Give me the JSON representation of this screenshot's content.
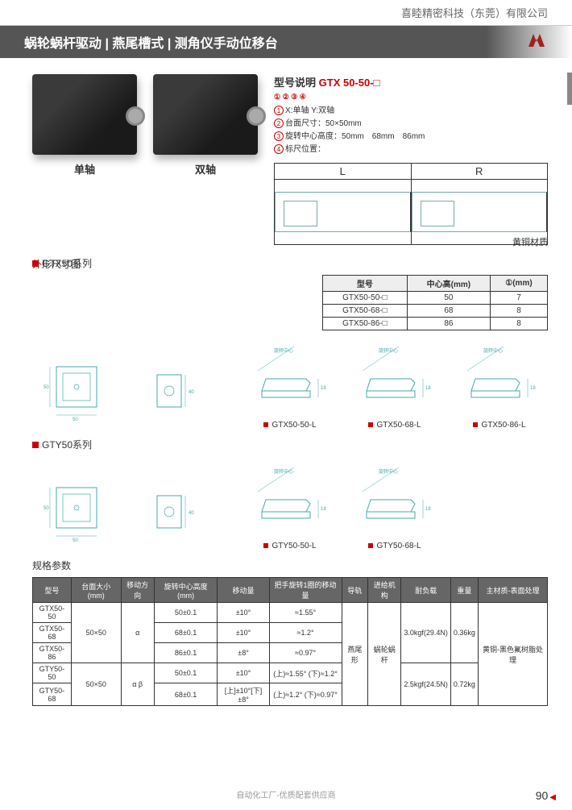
{
  "company": "喜睦精密科技（东莞）有限公司",
  "title": "蜗轮蜗杆驱动 | 燕尾槽式 | 测角仪手动位移台",
  "product_labels": {
    "single": "单轴",
    "dual": "双轴"
  },
  "model_section": {
    "label": "型号说明",
    "code": "GTX 50-50-□",
    "sub_nums": "① ② ③ ④",
    "lines": [
      {
        "n": "1",
        "t": "X:单轴 Y:双轴"
      },
      {
        "n": "2",
        "t": "台面尺寸：50×50mm"
      },
      {
        "n": "3",
        "t": "旋转中心高度：50mm　68mm　86mm"
      },
      {
        "n": "4",
        "t": "标尺位置："
      }
    ],
    "lr": {
      "L": "L",
      "R": "R"
    }
  },
  "outline_label": "外形尺寸图",
  "material": "黄铜材质",
  "series": {
    "gtx": "GTX50系列",
    "gty": "GTY50系列"
  },
  "mini_table": {
    "headers": [
      "型号",
      "中心高(mm)",
      "①(mm)"
    ],
    "rows": [
      [
        "GTX50-50-□",
        "50",
        "7"
      ],
      [
        "GTX50-68-□",
        "68",
        "8"
      ],
      [
        "GTX50-86-□",
        "86",
        "8"
      ]
    ]
  },
  "gtx_drawings": [
    "GTX50-50-L",
    "GTX50-68-L",
    "GTX50-86-L"
  ],
  "gty_drawings": [
    "GTY50-50-L",
    "GTY50-68-L"
  ],
  "spec_label": "规格参数",
  "spec_table": {
    "headers": [
      "型号",
      "台面大小(mm)",
      "移动方向",
      "旋转中心高度(mm)",
      "移动量",
      "把手旋转1圈的移动量",
      "导轨",
      "进给机构",
      "耐负载",
      "重量",
      "主材质-表面处理"
    ],
    "rows": [
      [
        "GTX50-50",
        "50×50",
        "α",
        "50±0.1",
        "±10°",
        "≈1.55°",
        "燕尾形",
        "蜗轮蜗杆",
        "3.0kgf(29.4N)",
        "0.36kg",
        "黄铜-黑色氟树脂处理"
      ],
      [
        "GTX50-68",
        "",
        "",
        "68±0.1",
        "±10°",
        "≈1.2°",
        "",
        "",
        "",
        "",
        ""
      ],
      [
        "GTX50-86",
        "",
        "",
        "86±0.1",
        "±8°",
        "≈0.97°",
        "",
        "",
        "",
        "",
        ""
      ],
      [
        "GTY50-50",
        "50×50",
        "α β",
        "50±0.1",
        "±10°",
        "(上)≈1.55° (下)≈1.2°",
        "",
        "",
        "2.5kgf(24.5N)",
        "0.72kg",
        ""
      ],
      [
        "GTY50-68",
        "",
        "",
        "68±0.1",
        "[上]±10°[下]±8°",
        "(上)≈1.2° (下)≈0.97°",
        "",
        "",
        "",
        "",
        ""
      ]
    ]
  },
  "footer": "自动化工厂-优质配套供应商",
  "page": "90",
  "colors": {
    "accent": "#c00",
    "header_bg": "#555"
  }
}
